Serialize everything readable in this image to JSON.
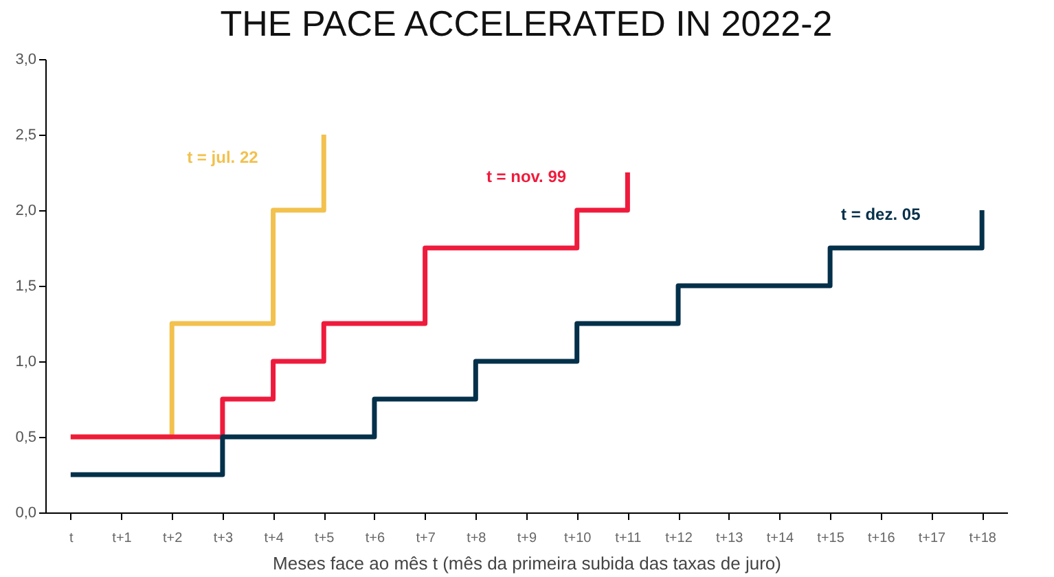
{
  "chart_data": {
    "type": "step",
    "title": "THE PACE ACCELERATED IN 2022-2",
    "xlabel": "Meses face ao mês t (mês da primeira subida das taxas de juro)",
    "categories": [
      "t",
      "t+1",
      "t+2",
      "t+3",
      "t+4",
      "t+5",
      "t+6",
      "t+7",
      "t+8",
      "t+9",
      "t+10",
      "t+11",
      "t+12",
      "t+13",
      "t+14",
      "t+15",
      "t+16",
      "t+17",
      "t+18"
    ],
    "series": [
      {
        "name": "t = jul. 22",
        "color": "#f2c14e",
        "values": [
          0.5,
          0.5,
          1.25,
          1.25,
          2.0,
          2.5,
          null,
          null,
          null,
          null,
          null,
          null,
          null,
          null,
          null,
          null,
          null,
          null,
          null
        ]
      },
      {
        "name": "t = nov. 99",
        "color": "#ef1b3c",
        "values": [
          0.5,
          0.5,
          0.5,
          0.75,
          1.0,
          1.25,
          1.25,
          1.75,
          1.75,
          1.75,
          2.0,
          2.25,
          null,
          null,
          null,
          null,
          null,
          null,
          null
        ]
      },
      {
        "name": "t = dez. 05",
        "color": "#04304a",
        "values": [
          0.25,
          0.25,
          0.25,
          0.5,
          0.5,
          0.5,
          0.75,
          0.75,
          1.0,
          1.0,
          1.25,
          1.25,
          1.5,
          1.5,
          1.5,
          1.75,
          1.75,
          1.75,
          2.0
        ]
      }
    ],
    "ylim": [
      0,
      3.0
    ],
    "yticks": [
      {
        "value": 0,
        "label": "0,0"
      },
      {
        "value": 0.5,
        "label": "0,5"
      },
      {
        "value": 1.0,
        "label": "1,0"
      },
      {
        "value": 1.5,
        "label": "1,5"
      },
      {
        "value": 2.0,
        "label": "2,0"
      },
      {
        "value": 2.5,
        "label": "2,5"
      },
      {
        "value": 3.0,
        "label": "3,0"
      }
    ],
    "grid": false,
    "legend": false
  }
}
